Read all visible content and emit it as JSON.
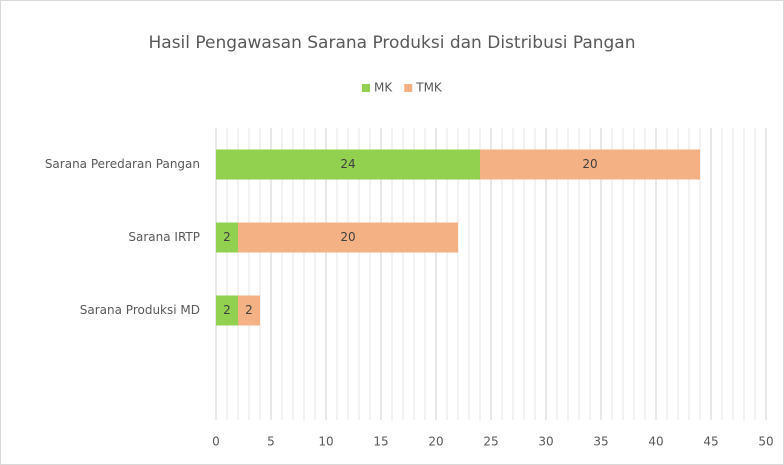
{
  "chart_data": {
    "type": "stacked_bar_horizontal",
    "title": "Hasil Pengawasan Sarana Produksi  dan Distribusi Pangan",
    "categories": [
      "Sarana Peredaran Pangan",
      "Sarana IRTP",
      "Sarana Produksi MD",
      null
    ],
    "series": [
      {
        "name": "MK",
        "color": "#92d050",
        "values": [
          24,
          2,
          2,
          null
        ]
      },
      {
        "name": "TMK",
        "color": "#f4b183",
        "values": [
          20,
          20,
          2,
          null
        ]
      }
    ],
    "xlim": [
      0,
      50
    ],
    "xticks": [
      0,
      5,
      10,
      15,
      20,
      25,
      30,
      35,
      40,
      45,
      50
    ],
    "grid": true,
    "minor_grid_step": 1,
    "legend": "top"
  }
}
